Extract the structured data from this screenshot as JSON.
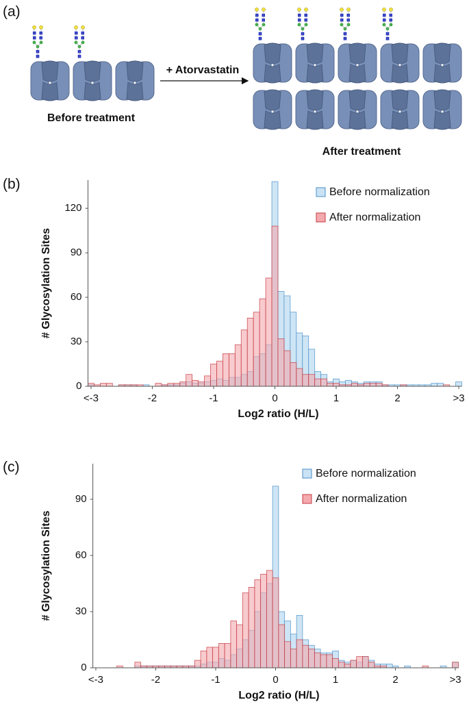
{
  "diagram": {
    "panel": "(a)",
    "arrow_label": "+ Atorvastatin",
    "before_label": "Before treatment",
    "after_label": "After treatment"
  },
  "chart_data": [
    {
      "type": "histogram",
      "panel": "(b)",
      "xlabel": "Log2 ratio (H/L)",
      "ylabel": "# Glycosylation Sites",
      "bins": [
        -3.05,
        -2.95,
        -2.85,
        -2.75,
        -2.65,
        -2.55,
        -2.45,
        -2.35,
        -2.25,
        -2.15,
        -2.05,
        -1.95,
        -1.85,
        -1.75,
        -1.65,
        -1.55,
        -1.45,
        -1.35,
        -1.25,
        -1.15,
        -1.05,
        -0.95,
        -0.85,
        -0.75,
        -0.65,
        -0.55,
        -0.45,
        -0.35,
        -0.25,
        -0.15,
        -0.05,
        0.05,
        0.15,
        0.25,
        0.35,
        0.45,
        0.55,
        0.65,
        0.75,
        0.85,
        0.95,
        1.05,
        1.15,
        1.25,
        1.35,
        1.45,
        1.55,
        1.65,
        1.75,
        1.85,
        1.95,
        2.05,
        2.15,
        2.25,
        2.35,
        2.45,
        2.55,
        2.65,
        2.75,
        2.85,
        2.95,
        3.05
      ],
      "series": [
        {
          "name": "Before normalization",
          "color": "#4a8fc7",
          "fill": "#c9e2f4",
          "values": [
            1,
            0,
            0,
            0,
            0,
            1,
            1,
            1,
            0,
            1,
            0,
            0,
            1,
            1,
            1,
            2,
            3,
            2,
            2,
            3,
            4,
            5,
            4,
            6,
            6,
            8,
            10,
            20,
            22,
            28,
            138,
            64,
            61,
            50,
            36,
            34,
            25,
            10,
            8,
            3,
            5,
            3,
            4,
            3,
            2,
            3,
            3,
            3,
            1,
            1,
            1,
            1,
            1,
            1,
            1,
            1,
            2,
            2,
            0,
            0,
            3
          ]
        },
        {
          "name": "After normalization",
          "color": "#c43a42",
          "fill": "#f4a9ae",
          "values": [
            2,
            1,
            2,
            2,
            0,
            1,
            1,
            1,
            1,
            0,
            0,
            2,
            1,
            2,
            2,
            3,
            8,
            4,
            3,
            7,
            15,
            17,
            22,
            22,
            28,
            38,
            46,
            50,
            59,
            73,
            108,
            32,
            24,
            16,
            12,
            8,
            8,
            5,
            5,
            2,
            2,
            1,
            1,
            2,
            1,
            2,
            2,
            2,
            1,
            0,
            0,
            1,
            0,
            0,
            0,
            0,
            0,
            0,
            1,
            0,
            0
          ]
        }
      ],
      "xlim": [
        -3.05,
        3.05
      ],
      "xticks": [
        {
          "value": -3,
          "label": "<-3"
        },
        -2,
        -1,
        0,
        1,
        2,
        {
          "value": 3,
          "label": ">3"
        }
      ],
      "ylim": [
        0,
        139
      ],
      "yticks": [
        0,
        30,
        60,
        90,
        120
      ],
      "legend": "top-right"
    },
    {
      "type": "histogram",
      "panel": "(c)",
      "xlabel": "Log2 ratio (H/L)",
      "ylabel": "# Glycosylation Sites",
      "bins": [
        -3.05,
        -2.95,
        -2.85,
        -2.75,
        -2.65,
        -2.55,
        -2.45,
        -2.35,
        -2.25,
        -2.15,
        -2.05,
        -1.95,
        -1.85,
        -1.75,
        -1.65,
        -1.55,
        -1.45,
        -1.35,
        -1.25,
        -1.15,
        -1.05,
        -0.95,
        -0.85,
        -0.75,
        -0.65,
        -0.55,
        -0.45,
        -0.35,
        -0.25,
        -0.15,
        -0.05,
        0.05,
        0.15,
        0.25,
        0.35,
        0.45,
        0.55,
        0.65,
        0.75,
        0.85,
        0.95,
        1.05,
        1.15,
        1.25,
        1.35,
        1.45,
        1.55,
        1.65,
        1.75,
        1.85,
        1.95,
        2.05,
        2.15,
        2.25,
        2.35,
        2.45,
        2.55,
        2.65,
        2.75,
        2.85,
        2.95,
        3.05
      ],
      "series": [
        {
          "name": "Before normalization",
          "color": "#4a8fc7",
          "fill": "#c9e2f4",
          "values": [
            0,
            0,
            0,
            0,
            0,
            0,
            0,
            1,
            1,
            1,
            1,
            1,
            1,
            1,
            1,
            1,
            1,
            1,
            2,
            3,
            3,
            5,
            4,
            7,
            10,
            15,
            20,
            30,
            40,
            45,
            97,
            30,
            25,
            18,
            28,
            15,
            12,
            10,
            8,
            8,
            9,
            4,
            3,
            4,
            3,
            6,
            4,
            2,
            2,
            2,
            1,
            0,
            1,
            0,
            0,
            0,
            0,
            0,
            1,
            0,
            3
          ]
        },
        {
          "name": "After normalization",
          "color": "#c43a42",
          "fill": "#f4a9ae",
          "values": [
            0,
            0,
            0,
            0,
            1,
            0,
            0,
            3,
            1,
            1,
            1,
            1,
            1,
            1,
            1,
            1,
            1,
            4,
            9,
            11,
            11,
            13,
            13,
            25,
            23,
            40,
            43,
            47,
            50,
            52,
            48,
            23,
            14,
            10,
            15,
            12,
            10,
            8,
            7,
            7,
            5,
            3,
            2,
            4,
            6,
            6,
            3,
            1,
            1,
            0,
            0,
            0,
            0,
            0,
            0,
            1,
            0,
            0,
            0,
            0,
            3
          ]
        }
      ],
      "xlim": [
        -3.05,
        3.05
      ],
      "xticks": [
        {
          "value": -3,
          "label": "<-3"
        },
        -2,
        -1,
        0,
        1,
        2,
        {
          "value": 3,
          "label": ">3"
        }
      ],
      "ylim": [
        0,
        109
      ],
      "yticks": [
        0,
        30,
        60,
        90
      ],
      "legend": "top-right"
    }
  ]
}
